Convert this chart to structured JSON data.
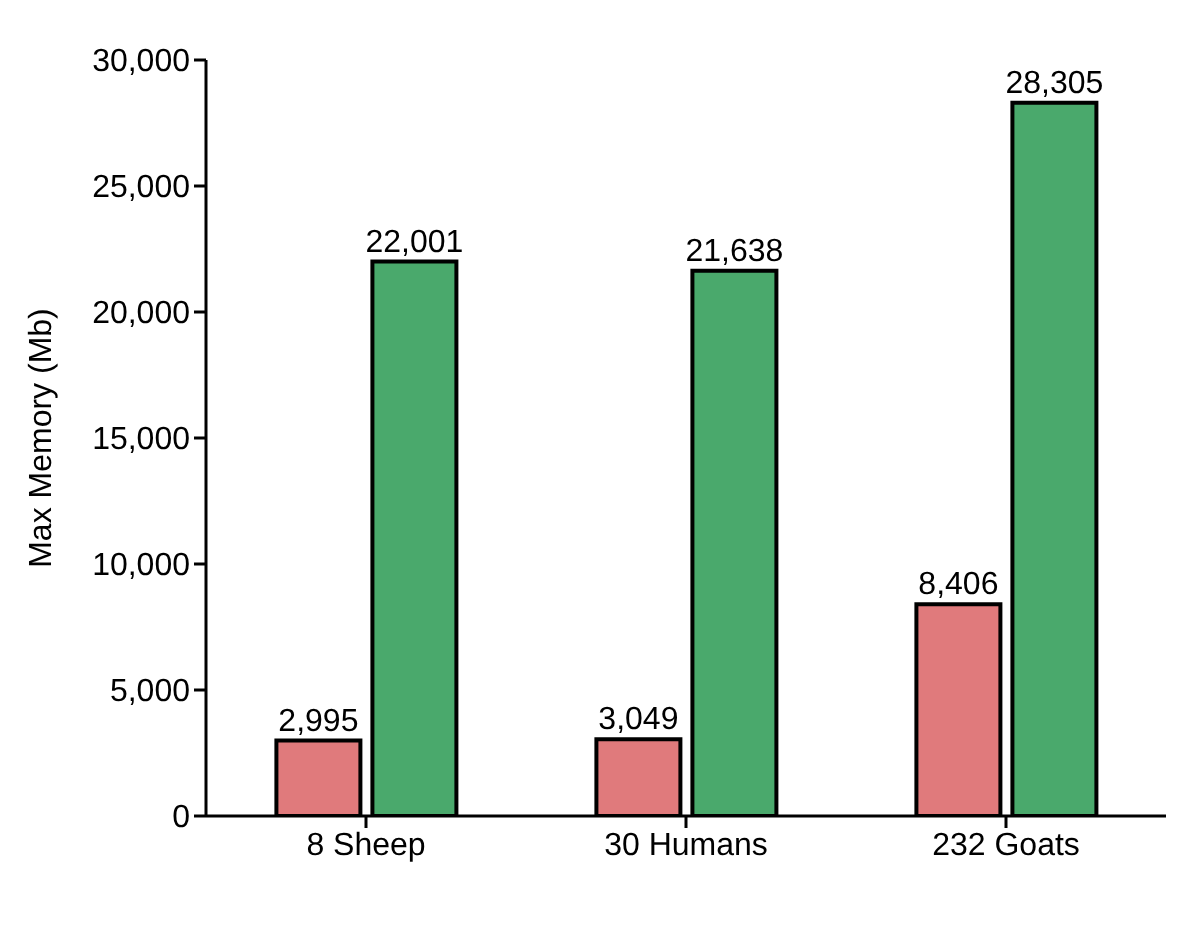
{
  "chart_data": {
    "type": "bar",
    "ylabel": "Max Memory (Mb)",
    "categories": [
      "8 Sheep",
      "30 Humans",
      "232 Goats"
    ],
    "series": [
      {
        "color": "#e07a7c",
        "values": [
          2995,
          3049,
          8406
        ],
        "value_labels": [
          "2,995",
          "3,049",
          "8,406"
        ]
      },
      {
        "color": "#4aa96c",
        "values": [
          22001,
          21638,
          28305
        ],
        "value_labels": [
          "22,001",
          "21,638",
          "28,305"
        ]
      }
    ],
    "ylim": [
      0,
      30000
    ],
    "yticks": [
      0,
      {
        "value": 5000,
        "label": "5,000"
      },
      {
        "value": 10000,
        "label": "10,000"
      },
      {
        "value": 15000,
        "label": "15,000"
      },
      {
        "value": 20000,
        "label": "20,000"
      },
      {
        "value": 25000,
        "label": "25,000"
      },
      {
        "value": 30000,
        "label": "30,000"
      }
    ],
    "grid": false,
    "legend": false
  }
}
